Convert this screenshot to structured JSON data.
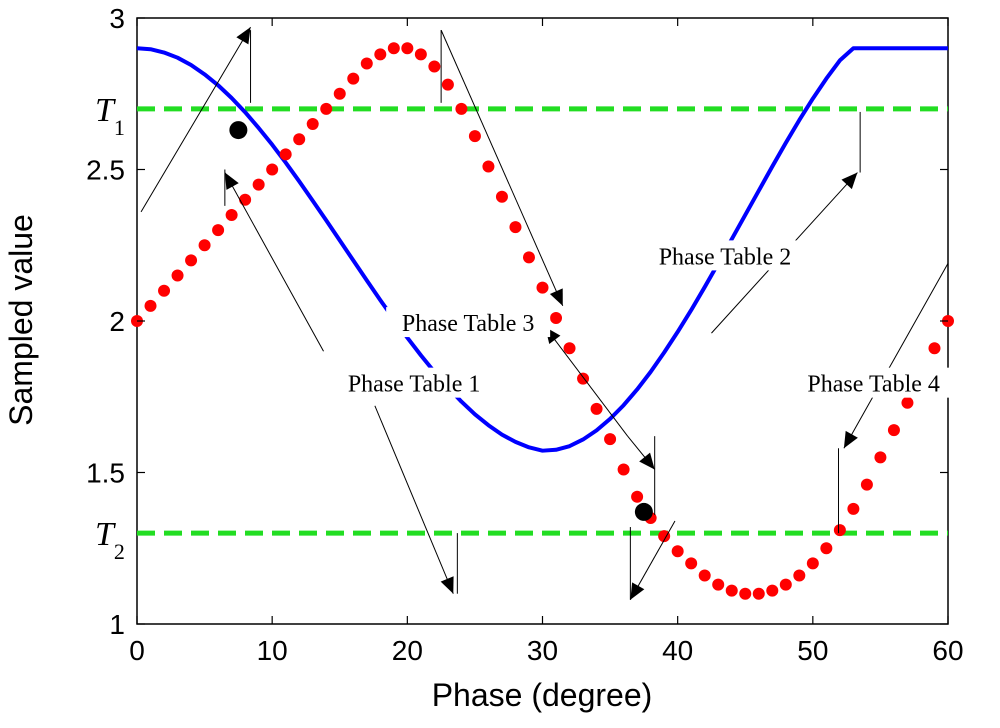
{
  "chart_data": {
    "type": "line",
    "xlabel": "Phase (degree)",
    "ylabel": "Sampled value",
    "xlim": [
      0,
      60
    ],
    "ylim": [
      1,
      3
    ],
    "xticks": [
      0,
      10,
      20,
      30,
      40,
      50,
      60
    ],
    "yticks": [
      1,
      1.5,
      2,
      2.5,
      3
    ],
    "grid": false,
    "series": [
      {
        "style": "solid-line",
        "color": "#0000ff",
        "x": [
          0,
          1,
          2,
          3,
          4,
          5,
          6,
          7,
          8,
          9,
          10,
          11,
          12,
          13,
          14,
          15,
          16,
          17,
          18,
          19,
          20,
          21,
          22,
          23,
          24,
          25,
          26,
          27,
          28,
          29,
          30,
          31,
          32,
          33,
          34,
          35,
          36,
          37,
          38,
          39,
          40,
          41,
          42,
          43,
          44,
          45,
          46,
          47,
          48,
          49,
          50,
          51,
          52,
          53,
          54,
          55,
          56,
          57,
          58,
          59,
          60
        ],
        "y": [
          2.9,
          2.897,
          2.886,
          2.869,
          2.845,
          2.814,
          2.778,
          2.736,
          2.689,
          2.637,
          2.582,
          2.523,
          2.461,
          2.397,
          2.332,
          2.266,
          2.2,
          2.134,
          2.069,
          2.006,
          1.945,
          1.887,
          1.832,
          1.781,
          1.734,
          1.692,
          1.656,
          1.625,
          1.601,
          1.583,
          1.572,
          1.575,
          1.587,
          1.609,
          1.639,
          1.677,
          1.722,
          1.774,
          1.832,
          1.896,
          1.964,
          2.036,
          2.112,
          2.19,
          2.27,
          2.35,
          2.43,
          2.51,
          2.588,
          2.663,
          2.734,
          2.8,
          2.86,
          2.913,
          2.958,
          2.994,
          3.02,
          3.036,
          3.04,
          2.92,
          2.9
        ]
      },
      {
        "style": "dots",
        "color": "#ff0000",
        "x": [
          0,
          1,
          2,
          3,
          4,
          5,
          6,
          7,
          8,
          9,
          10,
          11,
          12,
          13,
          14,
          15,
          16,
          17,
          18,
          19,
          20,
          21,
          22,
          23,
          24,
          25,
          26,
          27,
          28,
          29,
          30,
          31,
          32,
          33,
          34,
          35,
          36,
          37,
          38,
          39,
          40,
          41,
          42,
          43,
          44,
          45,
          46,
          47,
          48,
          49,
          50,
          51,
          52,
          53,
          54,
          55,
          56,
          57,
          58,
          59,
          60
        ],
        "y": [
          2,
          2.05,
          2.1,
          2.15,
          2.2,
          2.25,
          2.3,
          2.35,
          2.4,
          2.45,
          2.5,
          2.55,
          2.6,
          2.65,
          2.7,
          2.75,
          2.8,
          2.85,
          2.88,
          2.9,
          2.9,
          2.88,
          2.84,
          2.78,
          2.7,
          2.61,
          2.51,
          2.41,
          2.31,
          2.21,
          2.11,
          2.01,
          1.91,
          1.81,
          1.71,
          1.61,
          1.51,
          1.42,
          1.35,
          1.29,
          1.24,
          1.2,
          1.16,
          1.13,
          1.11,
          1.1,
          1.1,
          1.11,
          1.13,
          1.16,
          1.2,
          1.25,
          1.31,
          1.38,
          1.46,
          1.55,
          1.64,
          1.73,
          1.82,
          1.91,
          2
        ]
      }
    ],
    "thresholds": [
      {
        "label": "T",
        "sub": "1",
        "y": 2.7,
        "color": "#22dd22"
      },
      {
        "label": "T",
        "sub": "2",
        "y": 1.3,
        "color": "#22dd22"
      }
    ],
    "intersections": [
      {
        "x": 7.5,
        "y": 2.63
      },
      {
        "x": 37.5,
        "y": 1.37
      }
    ],
    "annotations": [
      {
        "text": "Phase Table 1",
        "x": 20.5,
        "y": 1.78
      },
      {
        "text": "Phase Table 3",
        "x": 24.5,
        "y": 1.98
      },
      {
        "text": "Phase Table 2",
        "x": 43.5,
        "y": 2.2
      },
      {
        "text": "Phase Table 4",
        "x": 54.5,
        "y": 1.78
      }
    ],
    "arrows": [
      {
        "from": [
          0.3,
          2.36
        ],
        "to": [
          8.4,
          2.97
        ],
        "bar": [
          [
            8.4,
            2.96
          ],
          [
            8.4,
            2.72
          ]
        ]
      },
      {
        "from": [
          13.8,
          1.9
        ],
        "to": [
          6.5,
          2.49
        ],
        "bar": [
          [
            6.5,
            2.5
          ],
          [
            6.5,
            2.38
          ]
        ]
      },
      {
        "from": [
          22.5,
          2.96
        ],
        "to": [
          31.5,
          2.05
        ],
        "bar": [
          [
            22.5,
            2.96
          ],
          [
            22.5,
            2.72
          ]
        ]
      },
      {
        "from": [
          36.3,
          1.62
        ],
        "to": [
          30.2,
          1.98
        ]
      },
      {
        "from": [
          36.3,
          1.62
        ],
        "to": [
          38.3,
          1.51
        ],
        "bar": [
          [
            38.3,
            1.62
          ],
          [
            38.3,
            1.36
          ]
        ]
      },
      {
        "from": [
          17.6,
          1.72
        ],
        "to": [
          23.4,
          1.1
        ],
        "bar": [
          [
            23.7,
            1.3
          ],
          [
            23.7,
            1.1
          ]
        ]
      },
      {
        "from": [
          39.8,
          1.34
        ],
        "to": [
          36.5,
          1.08
        ],
        "bar": [
          [
            36.5,
            1.32
          ],
          [
            36.5,
            1.08
          ]
        ]
      },
      {
        "from": [
          42.5,
          1.96
        ],
        "to": [
          53.3,
          2.49
        ],
        "bar": [
          [
            53.5,
            2.69
          ],
          [
            53.5,
            2.49
          ]
        ]
      },
      {
        "from": [
          60,
          2.19
        ],
        "to": [
          52.3,
          1.58
        ],
        "bar": [
          [
            51.9,
            1.58
          ],
          [
            51.9,
            1.3
          ]
        ]
      }
    ]
  }
}
